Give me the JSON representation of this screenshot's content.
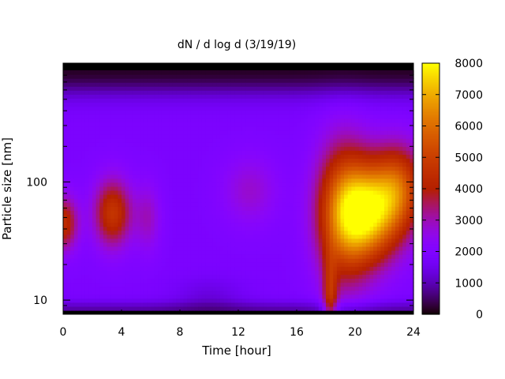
{
  "chart_data": {
    "type": "heatmap",
    "title": "dN / d log d (3/19/19)",
    "xlabel": "Time [hour]",
    "ylabel": "Particle size [nm]",
    "x_ticks": [
      "0",
      "4",
      "8",
      "12",
      "16",
      "20",
      "24"
    ],
    "y_ticks": [
      "10",
      "100"
    ],
    "colorbar_ticks": [
      "0",
      "1000",
      "2000",
      "3000",
      "4000",
      "5000",
      "6000",
      "7000",
      "8000"
    ],
    "xlim": [
      0,
      24
    ],
    "ylim_nm": [
      8.2,
      880
    ],
    "y_scale": "log",
    "zlim": [
      0,
      8000
    ],
    "colormap": "gnuplot",
    "grid": false,
    "colorbar_position": "right",
    "background_level": 1900,
    "features": [
      {
        "t": 0.0,
        "d_nm": 45,
        "level": 4500,
        "st": 0.7,
        "sd": 0.16
      },
      {
        "t": 3.4,
        "d_nm": 55,
        "level": 4700,
        "st": 0.9,
        "sd": 0.2
      },
      {
        "t": 5.8,
        "d_nm": 50,
        "level": 2900,
        "st": 0.6,
        "sd": 0.2
      },
      {
        "t": 12.8,
        "d_nm": 85,
        "level": 2800,
        "st": 1.3,
        "sd": 0.2
      },
      {
        "t": 18.3,
        "d_nm": 10,
        "level": 4200,
        "st": 0.35,
        "sd": 0.25
      },
      {
        "t": 19.2,
        "d_nm": 55,
        "level": 5600,
        "st": 1.3,
        "sd": 0.4
      },
      {
        "t": 21.0,
        "d_nm": 55,
        "level": 6800,
        "st": 1.5,
        "sd": 0.28
      },
      {
        "t": 23.0,
        "d_nm": 90,
        "level": 5000,
        "st": 1.2,
        "sd": 0.25
      }
    ]
  }
}
